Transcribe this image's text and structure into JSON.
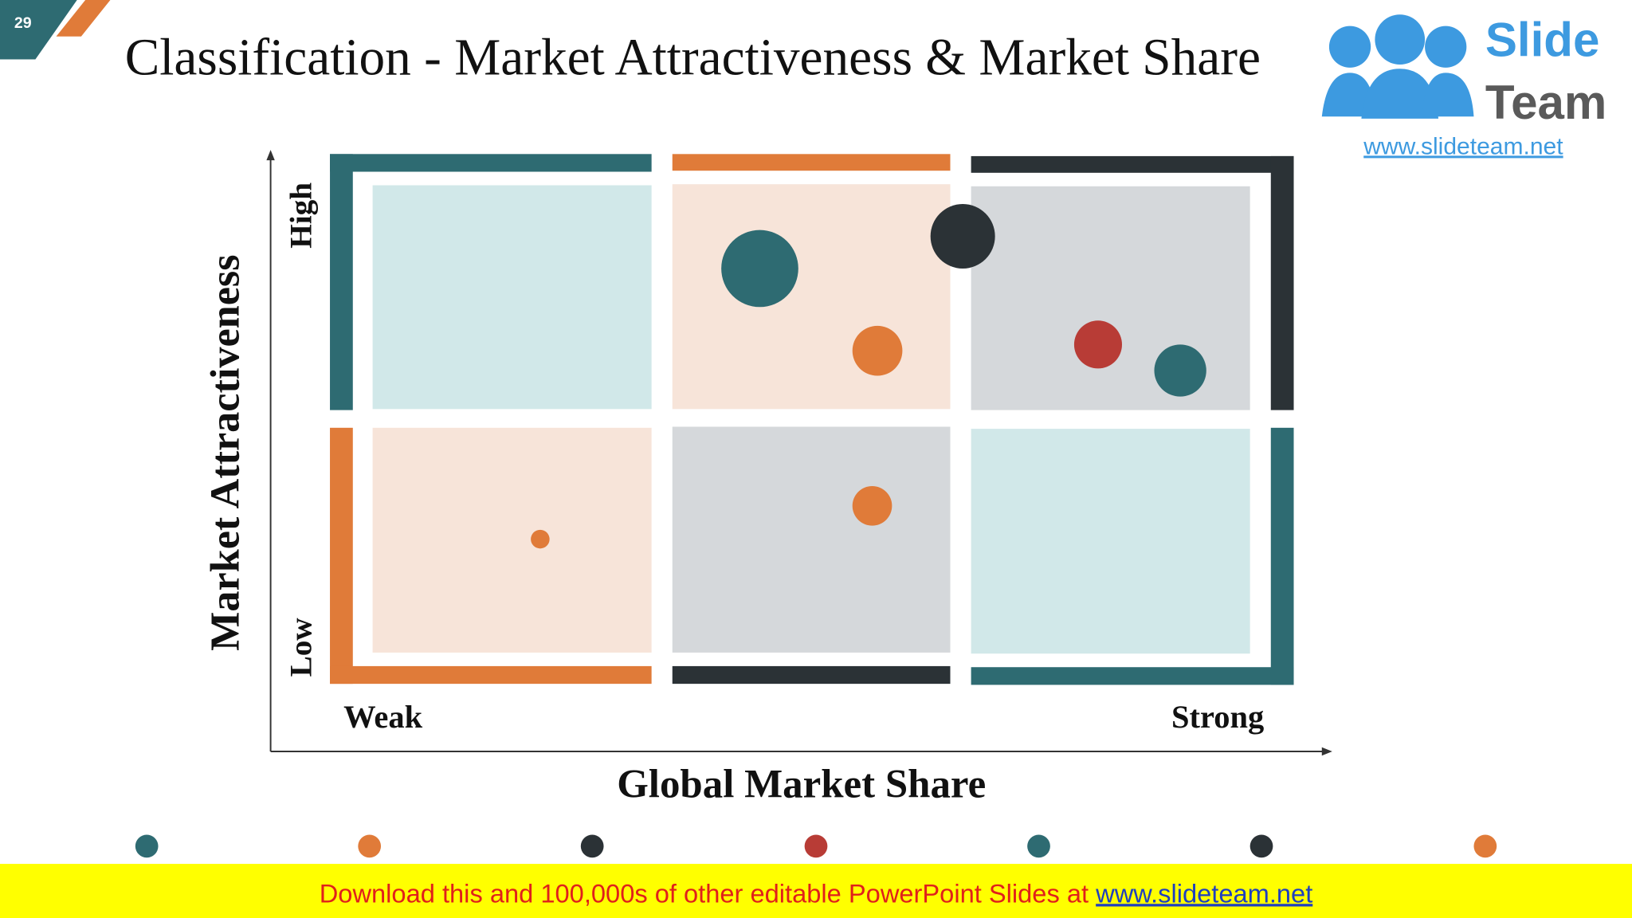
{
  "header": {
    "slide_number": "29",
    "title": "Classification - Market Attractiveness & Market Share"
  },
  "logo": {
    "brand_top": "Slide",
    "brand_bottom": "Team",
    "url": "www.slideteam.net"
  },
  "matrix": {
    "y_axis_label": "Market Attractiveness",
    "x_axis_label": "Global Market Share",
    "y_high": "High",
    "y_low": "Low",
    "x_weak": "Weak",
    "x_strong": "Strong"
  },
  "footer": {
    "text": "Download this and 100,000s of other editable PowerPoint Slides at ",
    "link": "www.slideteam.net"
  }
}
